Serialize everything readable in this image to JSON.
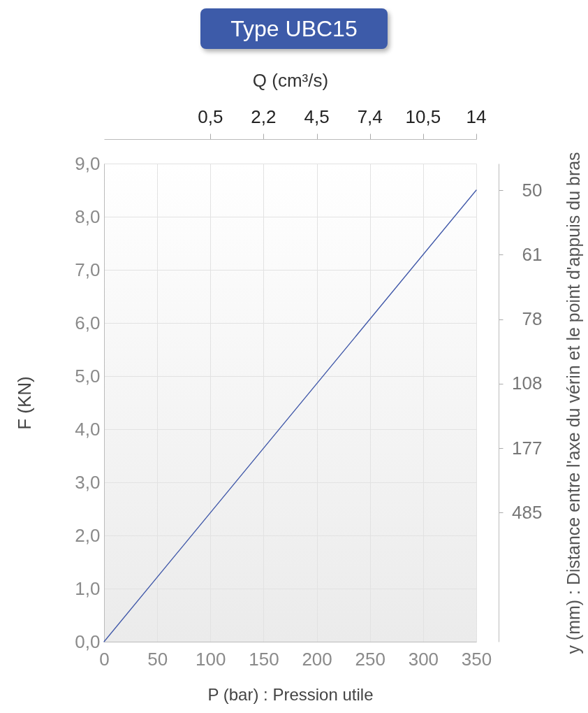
{
  "chart_data": {
    "type": "line",
    "title": "Type UBC15",
    "xlabel": "P (bar) : Pression utile",
    "ylabel": "F (KN)",
    "x2label": "Q (cm³/s)",
    "y2label": "y (mm) : Distance entre l'axe du vérin et le point d'appuis du bras",
    "x": [
      0,
      350
    ],
    "series": [
      {
        "color": "#3f57a8",
        "values": [
          0,
          8.5
        ]
      }
    ],
    "xlim": [
      0,
      350
    ],
    "xticks": [
      0,
      50,
      100,
      150,
      200,
      250,
      300,
      350
    ],
    "ylim": [
      0,
      9
    ],
    "yticks": [
      {
        "value": 0,
        "label": "0,0"
      },
      {
        "value": 1,
        "label": "1,0"
      },
      {
        "value": 2,
        "label": "2,0"
      },
      {
        "value": 3,
        "label": "3,0"
      },
      {
        "value": 4,
        "label": "4,0"
      },
      {
        "value": 5,
        "label": "5,0"
      },
      {
        "value": 6,
        "label": "6,0"
      },
      {
        "value": 7,
        "label": "7,0"
      },
      {
        "value": 8,
        "label": "8,0"
      },
      {
        "value": 9,
        "label": "9,0"
      }
    ],
    "annotations": [
      "0,5",
      "2,2",
      "4,5",
      "7,4",
      "10,5",
      "14"
    ],
    "y2_categories": [
      "50",
      "61",
      "78",
      "108",
      "177",
      "485",
      null,
      null
    ],
    "grid": true
  }
}
